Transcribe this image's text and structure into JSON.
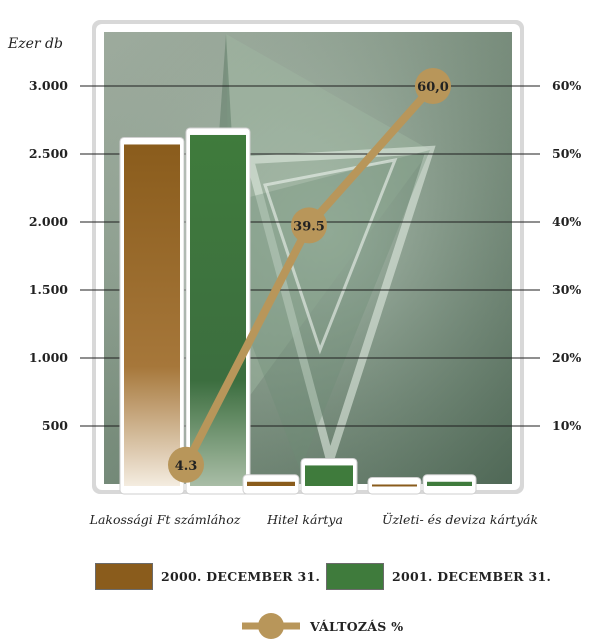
{
  "chart_data": {
    "type": "bar",
    "categories": [
      "Lakossági Ft számlához",
      "Hitel kártya",
      "Üzleti- és deviza kártyák"
    ],
    "series": [
      {
        "name": "2000. DECEMBER 31.",
        "values": [
          2570,
          90,
          70
        ],
        "color": "#8a5c1c"
      },
      {
        "name": "2001. DECEMBER 31.",
        "values": [
          2640,
          210,
          90
        ],
        "color": "#3f7b3c"
      }
    ],
    "line_series": {
      "name": "VÁLTOZÁS %",
      "values": [
        4.3,
        39.5,
        60.0
      ],
      "labels": [
        "4.3",
        "39.5",
        "60,0"
      ],
      "color": "#b8965a"
    },
    "y_left": {
      "unit_label": "Ezer db",
      "ticks": [
        500,
        1000,
        1500,
        2000,
        2500,
        3000
      ],
      "tick_labels": [
        "500",
        "1.000",
        "1.500",
        "2.000",
        "2.500",
        "3.000"
      ],
      "ylim": [
        0,
        3000
      ]
    },
    "y_right": {
      "ticks": [
        10,
        20,
        30,
        40,
        50,
        60
      ],
      "tick_labels": [
        "10%",
        "20%",
        "30%",
        "40%",
        "50%",
        "60%"
      ],
      "ylim": [
        0,
        60
      ]
    },
    "grid": true,
    "legend_position": "bottom"
  }
}
